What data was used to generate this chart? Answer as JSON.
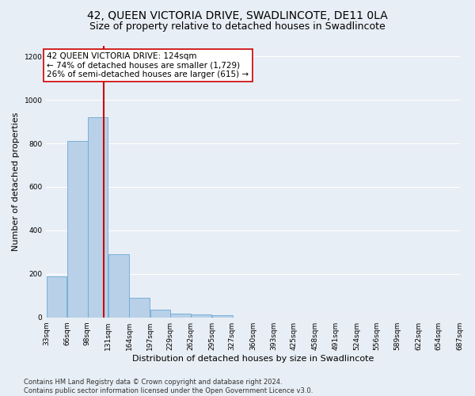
{
  "title": "42, QUEEN VICTORIA DRIVE, SWADLINCOTE, DE11 0LA",
  "subtitle": "Size of property relative to detached houses in Swadlincote",
  "xlabel": "Distribution of detached houses by size in Swadlincote",
  "ylabel": "Number of detached properties",
  "footnote": "Contains HM Land Registry data © Crown copyright and database right 2024.\nContains public sector information licensed under the Open Government Licence v3.0.",
  "bin_edges": [
    33,
    66,
    98,
    131,
    164,
    197,
    229,
    262,
    295,
    327,
    360,
    393,
    425,
    458,
    491,
    524,
    556,
    589,
    622,
    654,
    687
  ],
  "bar_heights": [
    190,
    810,
    920,
    290,
    90,
    35,
    18,
    12,
    10,
    0,
    0,
    0,
    0,
    0,
    0,
    0,
    0,
    0,
    0,
    0
  ],
  "bar_color": "#b8d0e8",
  "bar_edge_color": "#6aaad4",
  "property_size": 124,
  "vline_color": "#cc0000",
  "annotation_text": "42 QUEEN VICTORIA DRIVE: 124sqm\n← 74% of detached houses are smaller (1,729)\n26% of semi-detached houses are larger (615) →",
  "annotation_box_color": "#ffffff",
  "annotation_box_edge": "#cc0000",
  "ylim": [
    0,
    1250
  ],
  "yticks": [
    0,
    200,
    400,
    600,
    800,
    1000,
    1200
  ],
  "bg_color": "#e8eef5",
  "grid_color": "#ffffff",
  "title_fontsize": 10,
  "subtitle_fontsize": 9,
  "tick_label_fontsize": 6.5,
  "axis_label_fontsize": 8,
  "footnote_fontsize": 6
}
